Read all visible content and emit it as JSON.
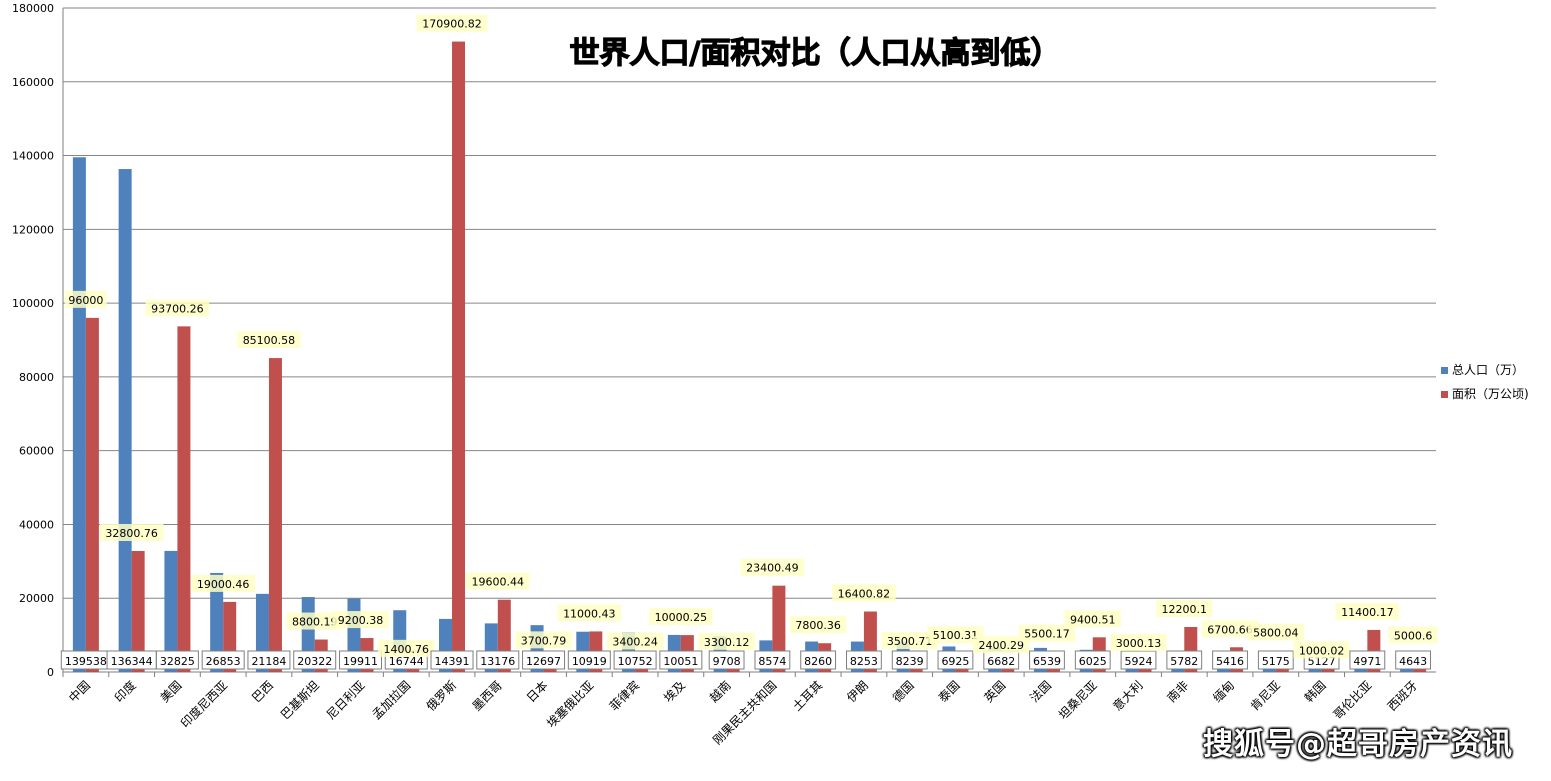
{
  "watermark": "搜狐号@超哥房产资讯",
  "colors": {
    "population": "#4f81bd",
    "area": "#c0504d",
    "grid": "#868686",
    "label_bg": "#ffffc6"
  },
  "chart_data": {
    "type": "bar",
    "title": "世界人口/面积对比（人口从高到低）",
    "xlabel": "",
    "ylabel": "",
    "ylim": [
      0,
      180000
    ],
    "yticks": [
      "0",
      "20000",
      "40000",
      "60000",
      "80000",
      "100000",
      "120000",
      "140000",
      "160000",
      "180000"
    ],
    "grid": true,
    "legend_position": "right",
    "categories": [
      "中国",
      "印度",
      "美国",
      "印度尼西亚",
      "巴西",
      "巴基斯坦",
      "尼日利亚",
      "孟加拉国",
      "俄罗斯",
      "墨西哥",
      "日本",
      "埃塞俄比亚",
      "菲律宾",
      "埃及",
      "越南",
      "刚果民主共和国",
      "土耳其",
      "伊朗",
      "德国",
      "泰国",
      "英国",
      "法国",
      "坦桑尼亚",
      "意大利",
      "南非",
      "缅甸",
      "肯尼亚",
      "韩国",
      "哥伦比亚",
      "西班牙"
    ],
    "series": [
      {
        "name": "总人口（万）",
        "values": [
          139538,
          136344,
          32825,
          26853,
          21184,
          20322,
          19911,
          16744,
          14391,
          13176,
          12697,
          10919,
          10752,
          10051,
          9708,
          8574,
          8260,
          8253,
          8239,
          6925,
          6682,
          6539,
          6025,
          5924,
          5782,
          5416,
          5175,
          5127,
          4971,
          4643
        ],
        "labels": [
          "139538",
          "136344",
          "32825",
          "26853",
          "21184",
          "20322",
          "19911",
          "16744",
          "14391",
          "13176",
          "12697",
          "10919",
          "10752",
          "10051",
          "9708",
          "8574",
          "8260",
          "8253",
          "8239",
          "6925",
          "6682",
          "6539",
          "6025",
          "5924",
          "5782",
          "5416",
          "5175",
          "5127",
          "4971",
          "4643"
        ]
      },
      {
        "name": "面积（万公顷)",
        "values": [
          96000,
          32800.76,
          93700.26,
          19000.46,
          85100.58,
          8800.19,
          9200.38,
          1400.76,
          170900.82,
          19600.44,
          3700.79,
          11000.43,
          3400.24,
          10000.25,
          3300.12,
          23400.49,
          7800.36,
          16400.82,
          3500.71,
          5100.31,
          2400.29,
          5500.17,
          9400.51,
          3000.13,
          12200.1,
          6700.66,
          5800.04,
          1000.02,
          11400.17,
          5000.6
        ],
        "labels": [
          "96000",
          "32800.76",
          "93700.26",
          "19000.46",
          "85100.58",
          "8800.19",
          "9200.38",
          "1400.76",
          "170900.82",
          "19600.44",
          "3700.79",
          "11000.43",
          "3400.24",
          "10000.25",
          "3300.12",
          "23400.49",
          "7800.36",
          "16400.82",
          "3500.71",
          "5100.31",
          "2400.29",
          "5500.17",
          "9400.51",
          "3000.13",
          "12200.1",
          "6700.66",
          "5800.04",
          "1000.02",
          "11400.17",
          "5000.6"
        ]
      }
    ]
  }
}
